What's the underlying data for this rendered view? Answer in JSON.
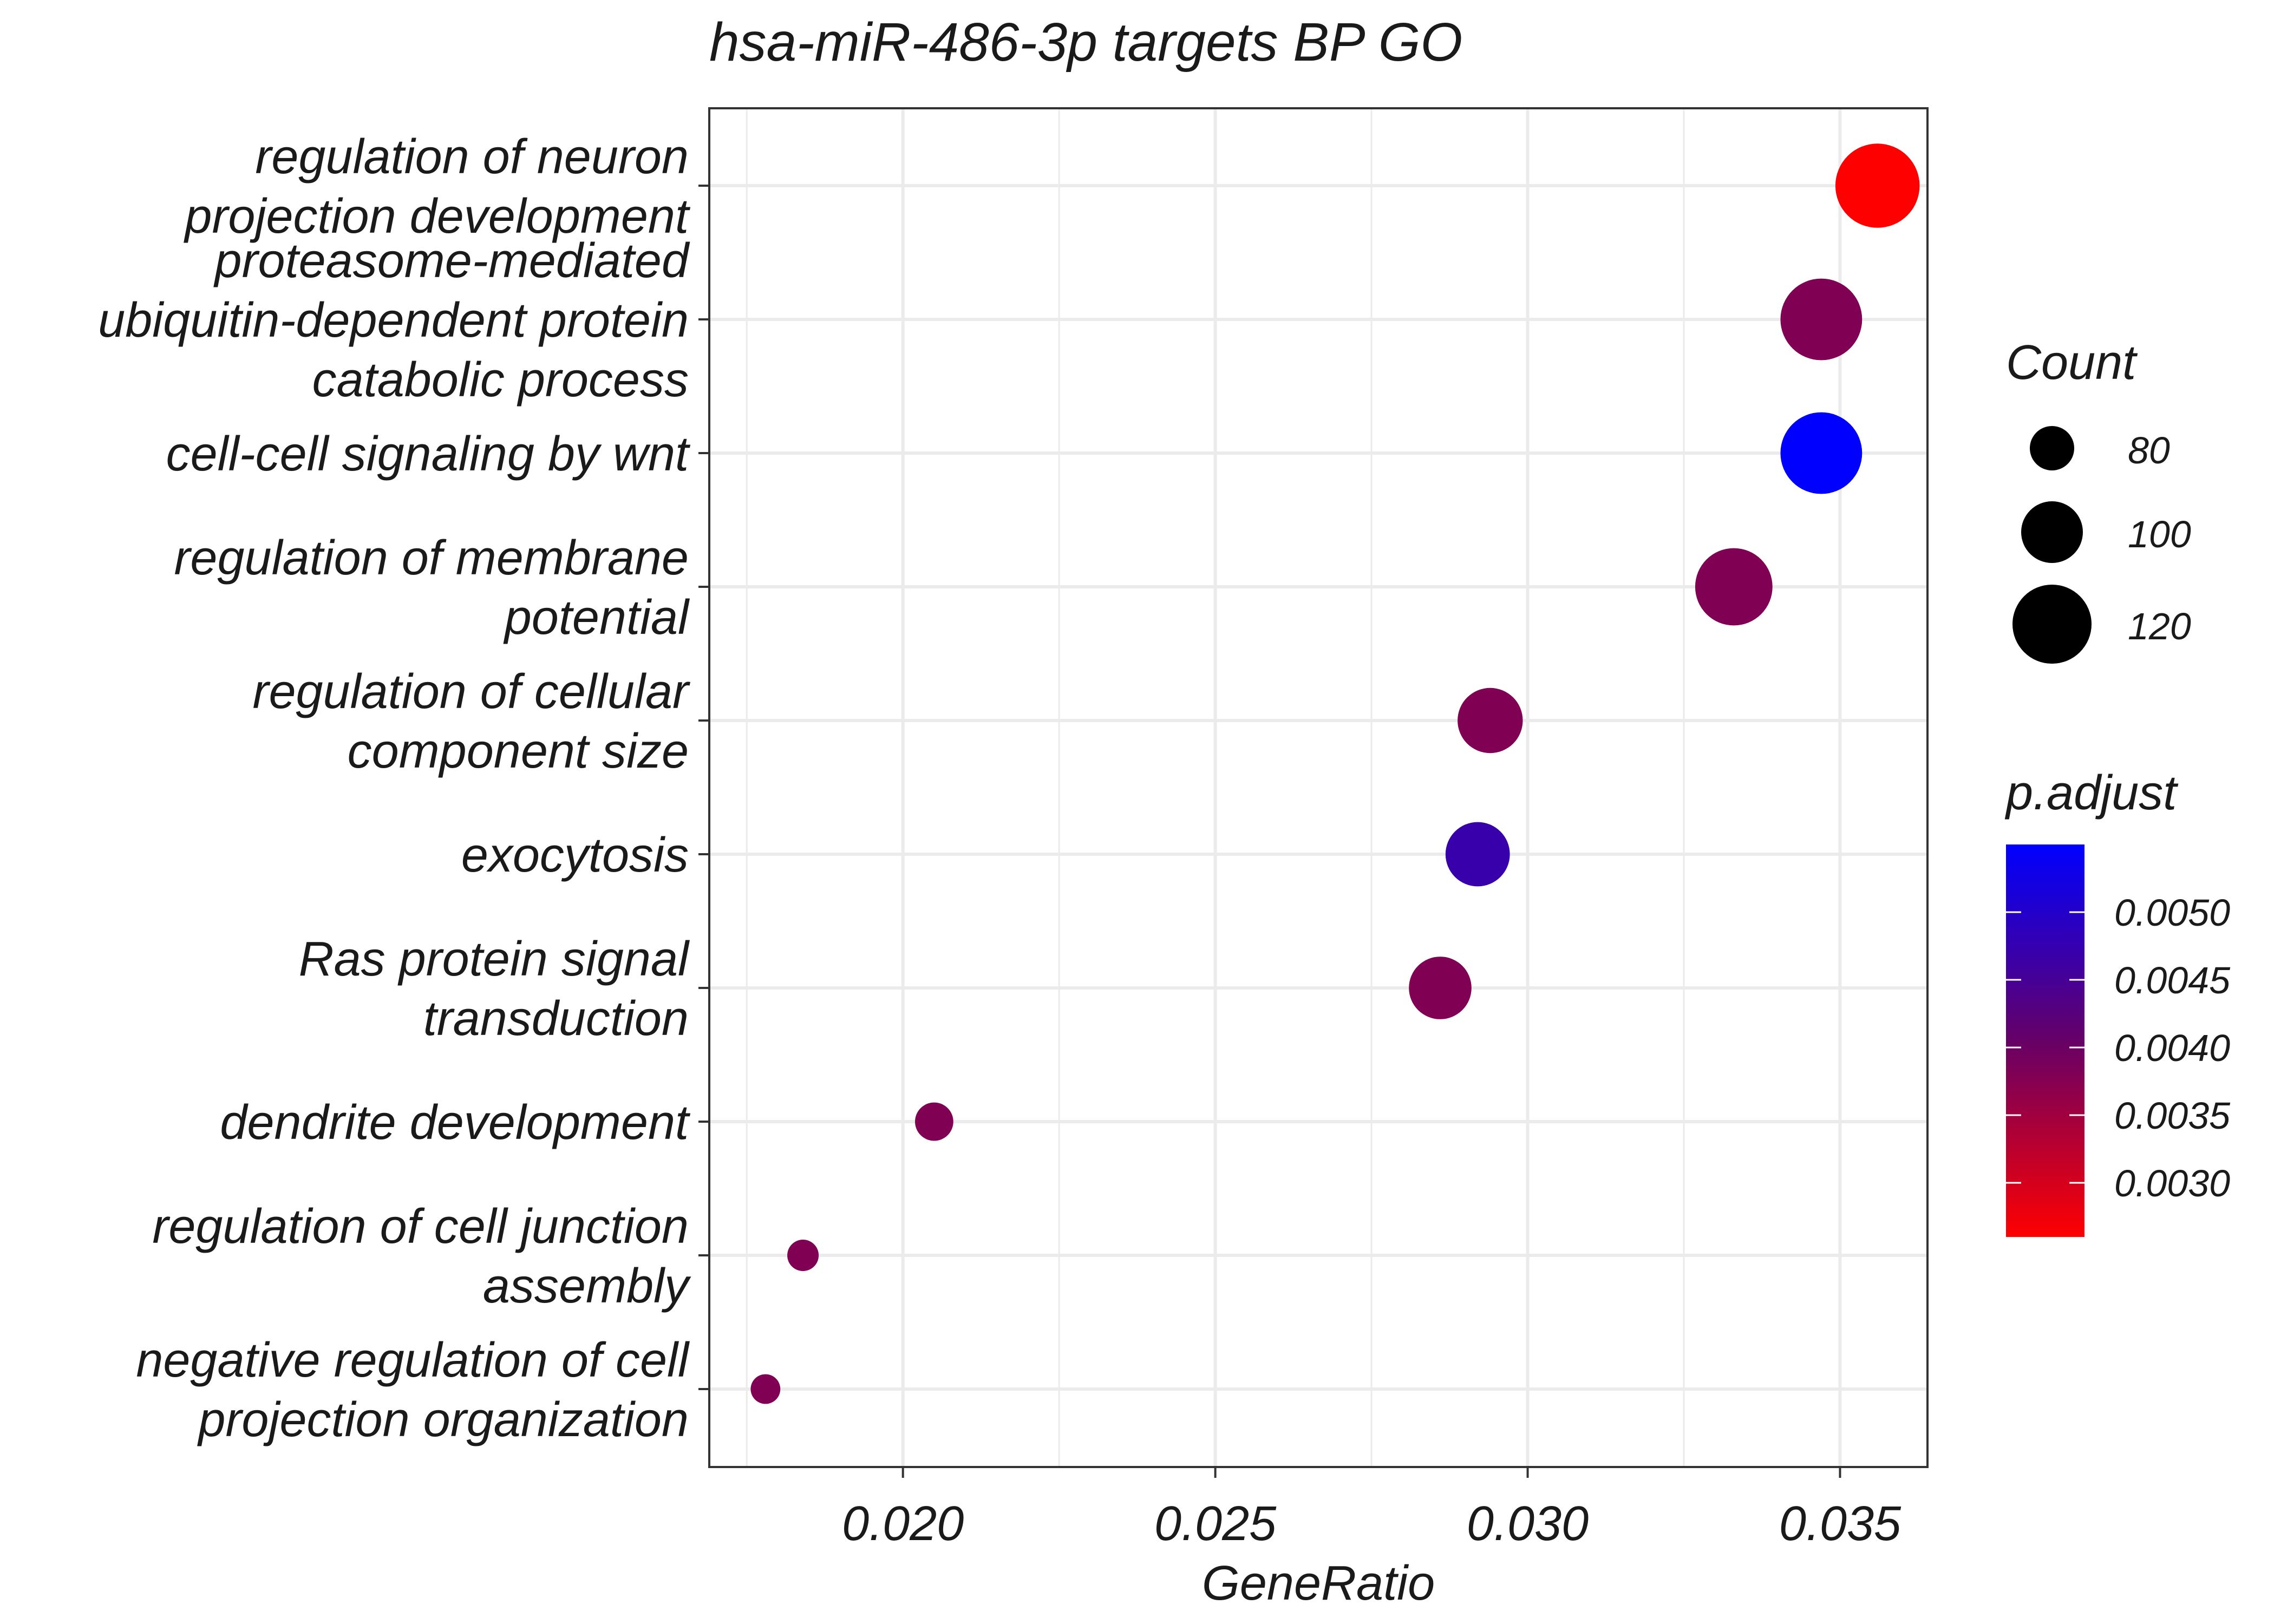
{
  "chart_data": {
    "type": "scatter",
    "title": "hsa-miR-486-3p targets BP GO",
    "xlabel": "GeneRatio",
    "ylabel": "",
    "xlim": [
      0.0169,
      0.0364
    ],
    "x_ticks": [
      0.02,
      0.025,
      0.03,
      0.035
    ],
    "x_tick_labels": [
      "0.020",
      "0.025",
      "0.030",
      "0.035"
    ],
    "x_minor_ticks": [
      0.0175,
      0.0225,
      0.0275,
      0.0325
    ],
    "grid": true,
    "categories": [
      [
        "regulation of neuron",
        "projection development"
      ],
      [
        "proteasome-mediated",
        "ubiquitin-dependent protein",
        "catabolic process"
      ],
      [
        "cell-cell signaling by wnt"
      ],
      [
        "regulation of membrane",
        "potential"
      ],
      [
        "regulation of cellular",
        "component size"
      ],
      [
        "exocytosis"
      ],
      [
        "Ras protein signal",
        "transduction"
      ],
      [
        "dendrite development"
      ],
      [
        "regulation of cell junction",
        "assembly"
      ],
      [
        "negative regulation of cell",
        "projection organization"
      ]
    ],
    "points": [
      {
        "gene_ratio": 0.0356,
        "count": 126,
        "p_adjust": 0.0026
      },
      {
        "gene_ratio": 0.0347,
        "count": 123,
        "p_adjust": 0.0038
      },
      {
        "gene_ratio": 0.0347,
        "count": 123,
        "p_adjust": 0.0055
      },
      {
        "gene_ratio": 0.0333,
        "count": 118,
        "p_adjust": 0.0038
      },
      {
        "gene_ratio": 0.0294,
        "count": 104,
        "p_adjust": 0.0038
      },
      {
        "gene_ratio": 0.0292,
        "count": 103,
        "p_adjust": 0.0047
      },
      {
        "gene_ratio": 0.0286,
        "count": 101,
        "p_adjust": 0.0038
      },
      {
        "gene_ratio": 0.0205,
        "count": 73,
        "p_adjust": 0.0038
      },
      {
        "gene_ratio": 0.0184,
        "count": 65,
        "p_adjust": 0.0038
      },
      {
        "gene_ratio": 0.0178,
        "count": 63,
        "p_adjust": 0.0038
      }
    ],
    "size_legend": {
      "title": "Count",
      "entries": [
        {
          "label": "80",
          "value": 80
        },
        {
          "label": "100",
          "value": 100
        },
        {
          "label": "120",
          "value": 120
        }
      ]
    },
    "color_legend": {
      "title": "p.adjust",
      "range": [
        0.0026,
        0.0055
      ],
      "ticks": [
        0.003,
        0.0035,
        0.004,
        0.0045,
        0.005
      ],
      "tick_labels": [
        "0.0030",
        "0.0035",
        "0.0040",
        "0.0045",
        "0.0050"
      ],
      "low_color": "#ff0000",
      "high_color": "#0000ff"
    },
    "colors": {
      "grid": "#ebebeb",
      "panel_border": "#333333",
      "text": "#1a1a1a",
      "size_legend_point": "#000000"
    }
  }
}
